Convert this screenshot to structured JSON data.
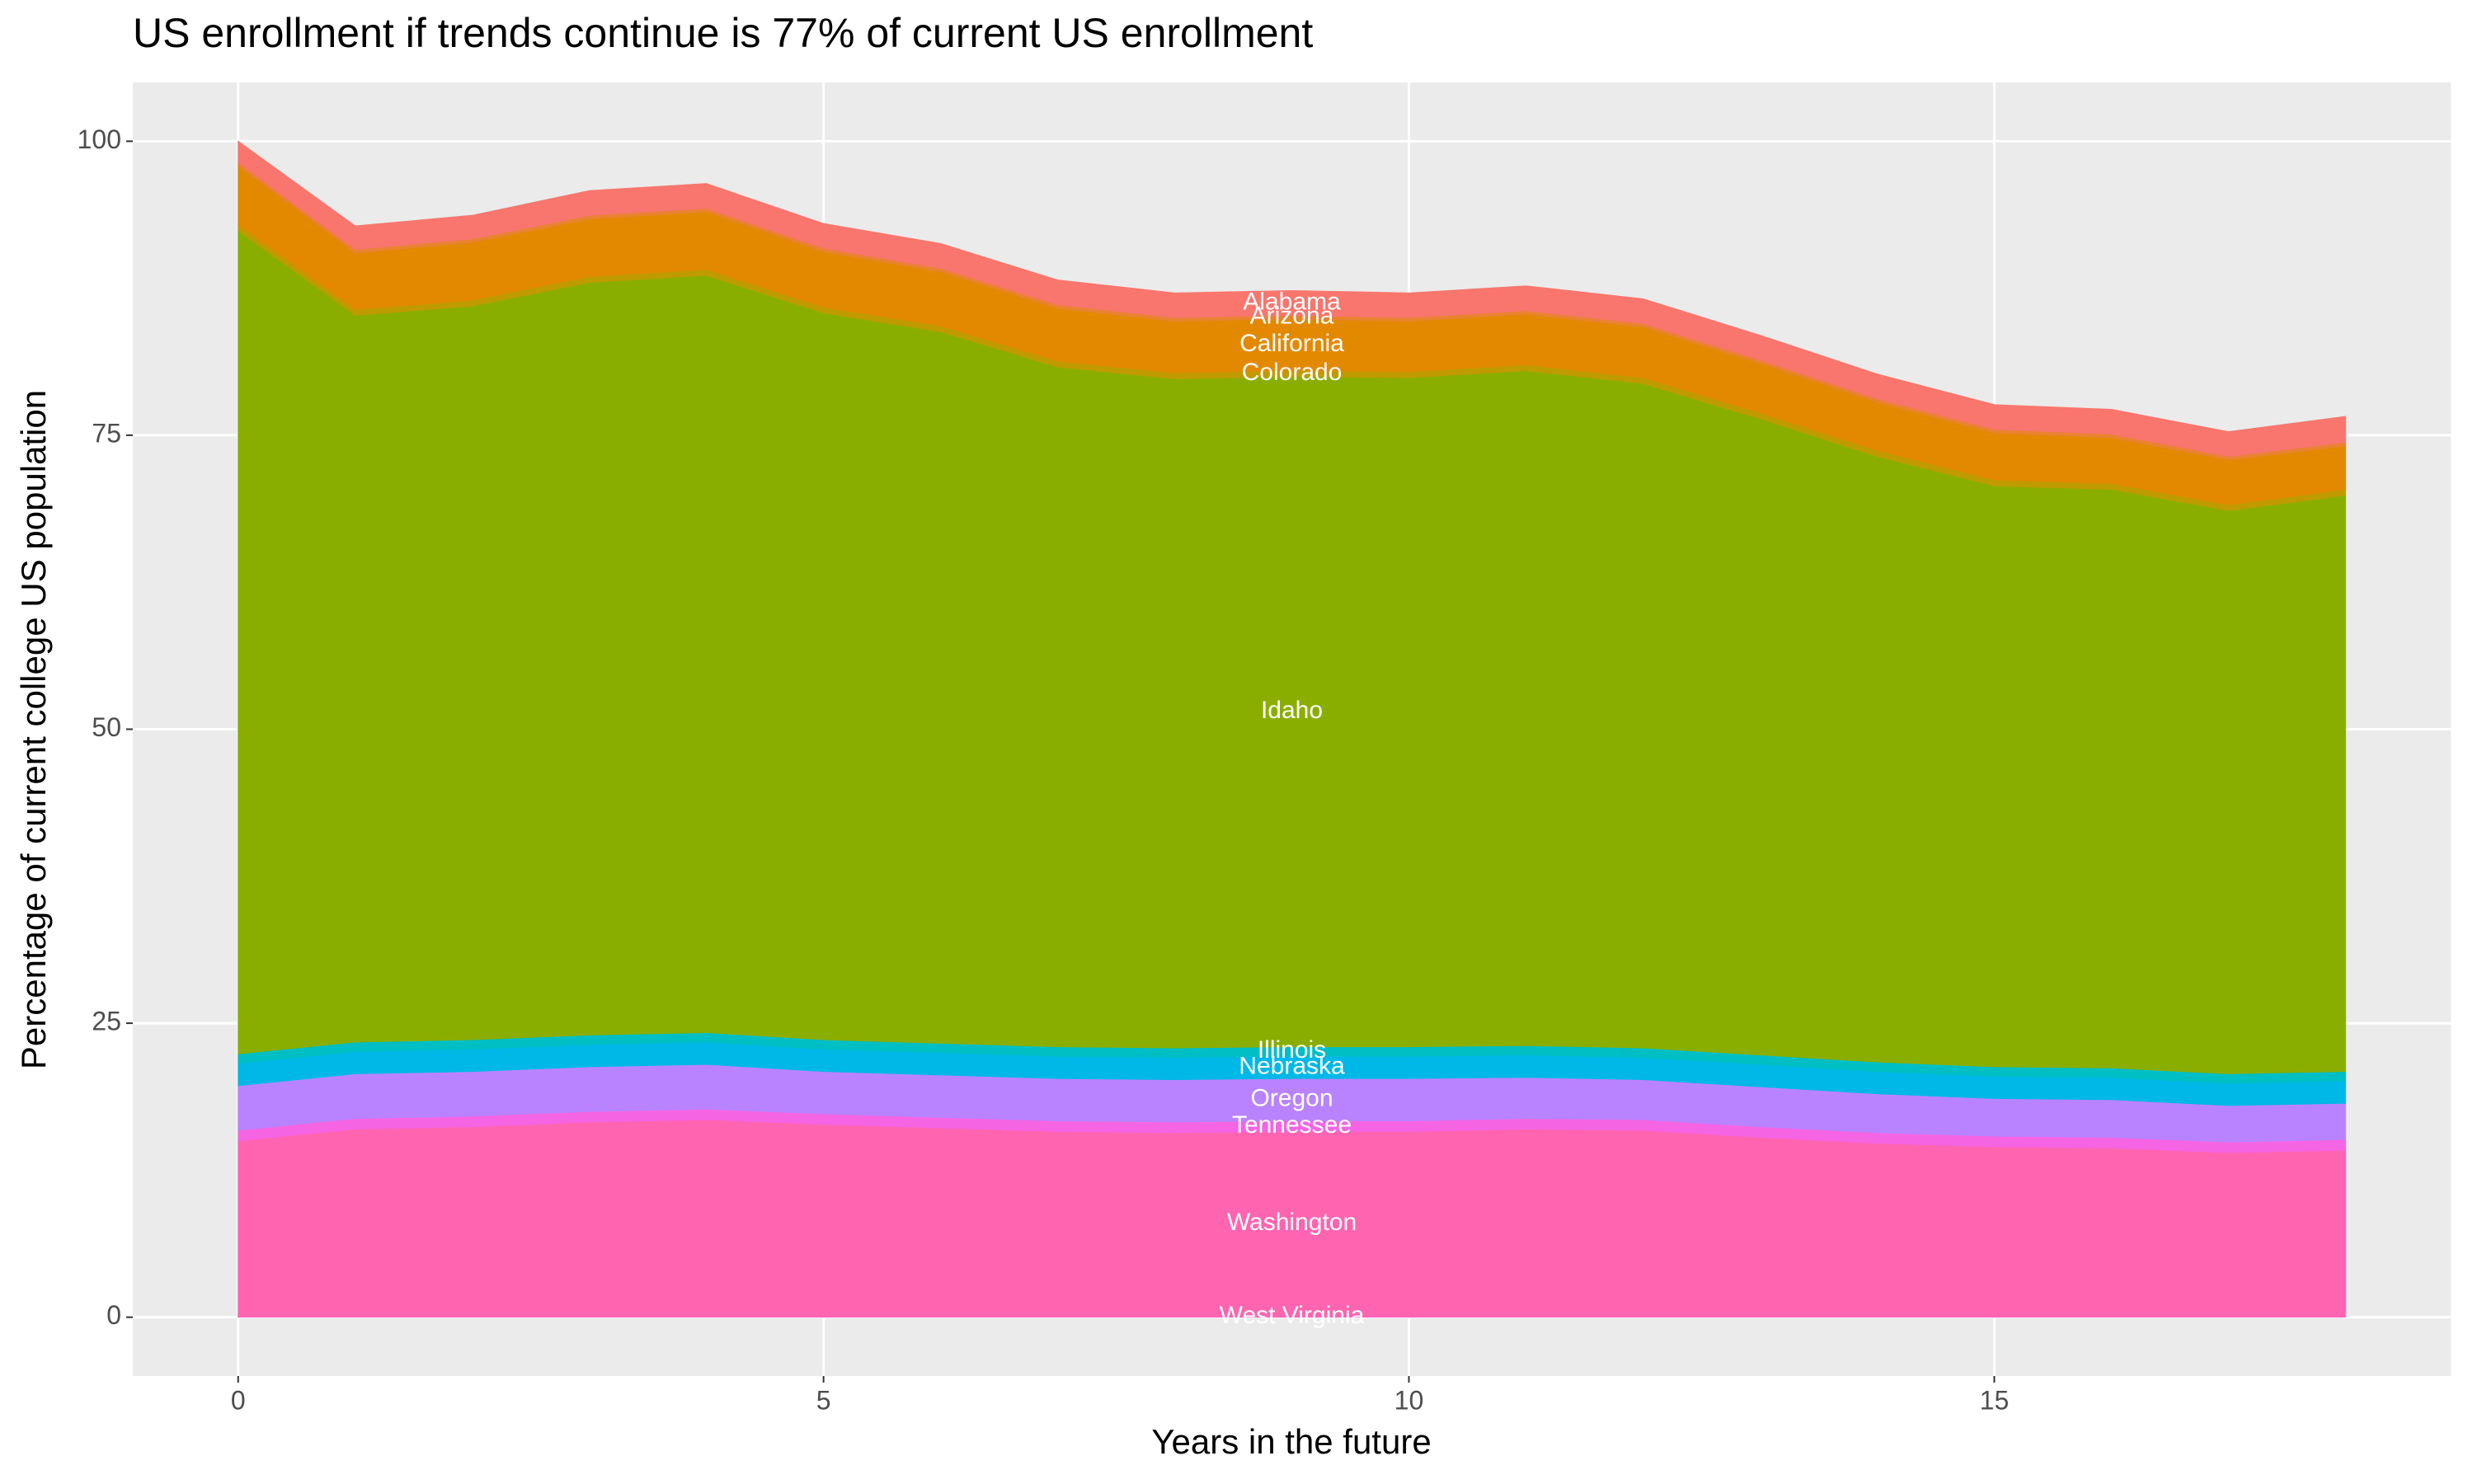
{
  "chart_data": {
    "type": "stacked_area",
    "title": "US enrollment if trends continue is 77% of current US enrollment",
    "x_label": "Years in the future",
    "y_label": "Percentage of current college US population",
    "x": [
      0,
      1,
      2,
      3,
      4,
      5,
      6,
      7,
      8,
      9,
      10,
      11,
      12,
      13,
      14,
      15,
      16,
      17,
      18
    ],
    "xlim": [
      -0.9,
      18.9
    ],
    "xticks": [
      0,
      5,
      10,
      15
    ],
    "ylim": [
      -5,
      105
    ],
    "yticks": [
      0,
      25,
      50,
      75,
      100
    ],
    "grid": true,
    "series": [
      {
        "name": "West Virginia",
        "color": "#FF61C3",
        "values": [
          0.1,
          0.1,
          0.1,
          0.1,
          0.1,
          0.1,
          0.1,
          0.1,
          0.1,
          0.1,
          0.1,
          0.1,
          0.1,
          0.1,
          0.1,
          0.1,
          0.1,
          0.1,
          0.1
        ]
      },
      {
        "name": "Washington",
        "color": "#FF64B0",
        "values": [
          14.9,
          15.9,
          16.1,
          16.5,
          16.7,
          16.3,
          16.0,
          15.7,
          15.6,
          15.7,
          15.7,
          15.9,
          15.8,
          15.2,
          14.7,
          14.4,
          14.3,
          13.9,
          14.1
        ]
      },
      {
        "name": "Tennessee",
        "color": "#F564E3",
        "values": [
          0.9,
          0.9,
          0.9,
          0.9,
          0.9,
          0.9,
          0.9,
          0.9,
          0.9,
          0.9,
          0.9,
          0.9,
          0.9,
          0.9,
          0.9,
          0.9,
          0.9,
          0.9,
          0.9
        ]
      },
      {
        "name": "Oregon",
        "color": "#B983FF",
        "values": [
          3.8,
          3.8,
          3.8,
          3.8,
          3.8,
          3.6,
          3.6,
          3.6,
          3.6,
          3.6,
          3.6,
          3.5,
          3.4,
          3.4,
          3.3,
          3.2,
          3.2,
          3.1,
          3.1
        ]
      },
      {
        "name": "Nebraska",
        "color": "#00B8E7",
        "values": [
          1.9,
          1.9,
          1.9,
          1.9,
          1.9,
          1.9,
          1.9,
          1.9,
          1.9,
          1.9,
          1.9,
          1.9,
          1.9,
          1.9,
          1.9,
          1.9,
          1.9,
          1.9,
          1.9
        ]
      },
      {
        "name": "Illinois",
        "color": "#00BFC4",
        "values": [
          0.8,
          0.8,
          0.8,
          0.8,
          0.8,
          0.8,
          0.8,
          0.8,
          0.8,
          0.8,
          0.8,
          0.8,
          0.8,
          0.8,
          0.8,
          0.8,
          0.8,
          0.8,
          0.8
        ]
      },
      {
        "name": "Idaho",
        "color": "#8AAE00",
        "values": [
          70.0,
          61.8,
          62.4,
          64.0,
          64.4,
          61.8,
          60.5,
          57.8,
          56.9,
          57.0,
          56.9,
          57.4,
          56.5,
          54.1,
          51.5,
          49.4,
          49.2,
          47.9,
          49.0
        ]
      },
      {
        "name": "Colorado",
        "color": "#C09B00",
        "values": [
          0.5,
          0.5,
          0.5,
          0.5,
          0.5,
          0.5,
          0.5,
          0.5,
          0.5,
          0.5,
          0.5,
          0.5,
          0.5,
          0.5,
          0.5,
          0.5,
          0.5,
          0.5,
          0.5
        ]
      },
      {
        "name": "California",
        "color": "#E38900",
        "values": [
          5.0,
          4.8,
          4.9,
          4.9,
          4.9,
          4.7,
          4.6,
          4.5,
          4.4,
          4.4,
          4.3,
          4.3,
          4.3,
          4.2,
          4.1,
          4.0,
          3.9,
          3.8,
          3.7
        ]
      },
      {
        "name": "Arizona",
        "color": "#EA8331",
        "values": [
          0.3,
          0.3,
          0.3,
          0.3,
          0.3,
          0.3,
          0.3,
          0.3,
          0.3,
          0.3,
          0.3,
          0.3,
          0.3,
          0.3,
          0.3,
          0.3,
          0.3,
          0.3,
          0.3
        ]
      },
      {
        "name": "Alabama",
        "color": "#F8766D",
        "values": [
          1.8,
          2.0,
          2.0,
          2.1,
          2.1,
          2.1,
          2.1,
          2.1,
          2.1,
          2.1,
          2.1,
          2.1,
          2.1,
          2.1,
          2.1,
          2.1,
          2.1,
          2.1,
          2.2
        ]
      }
    ]
  }
}
